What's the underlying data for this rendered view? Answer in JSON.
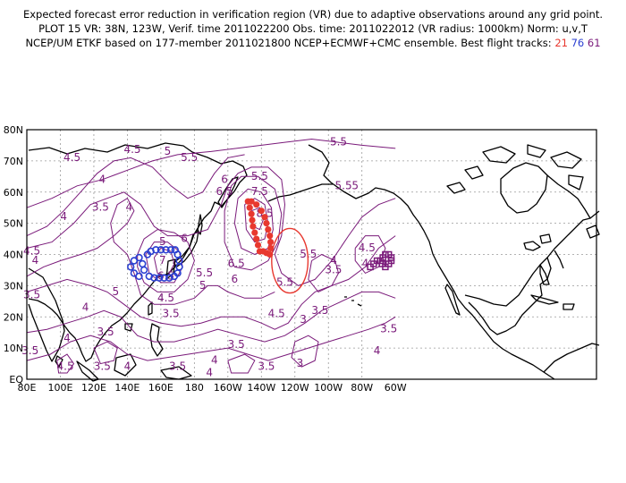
{
  "title": {
    "line1": "Expected forecast error reduction in verification region (VR) due to adaptive observations around any grid point.",
    "line2": "PLOT 15 VR: 38N, 123W, Verif. time 2011022200 Obs. time: 2011022012 (VR radius: 1000km) Norm: u,v,T",
    "line3_prefix": "NCEP/UM ETKF based on 177-member 2011021800 NCEP+ECMWF+CMC ensemble. Best flight tracks:",
    "tracks": [
      "21",
      "76",
      "61"
    ]
  },
  "axes": {
    "lat_labels": [
      "80N",
      "70N",
      "60N",
      "50N",
      "40N",
      "30N",
      "20N",
      "10N",
      "EQ"
    ],
    "lon_labels": [
      "80E",
      "100E",
      "120E",
      "140E",
      "160E",
      "180",
      "160W",
      "140W",
      "120W",
      "100W",
      "80W",
      "60W"
    ]
  },
  "colors": {
    "contour": "#7a1a7a",
    "track_21": "#e8382f",
    "track_76": "#2a3fd1",
    "track_61": "#7a1a7a",
    "vr_circle": "#e8382f"
  },
  "verification_region": {
    "lat": 38,
    "lon": -123,
    "radius_km": 1000
  },
  "contour_labels": [
    {
      "text": "4.5",
      "lat": 72.5,
      "lon": 143
    },
    {
      "text": "4.5",
      "lat": 70,
      "lon": 107
    },
    {
      "text": "4",
      "lat": 63,
      "lon": 125
    },
    {
      "text": "5",
      "lat": 72,
      "lon": 164
    },
    {
      "text": "5.5",
      "lat": 70,
      "lon": 177
    },
    {
      "text": "6",
      "lat": 63,
      "lon": -162
    },
    {
      "text": "6.5",
      "lat": 59,
      "lon": -162
    },
    {
      "text": "5.5",
      "lat": 64,
      "lon": -141
    },
    {
      "text": "7.5",
      "lat": 59,
      "lon": -141
    },
    {
      "text": "8.5",
      "lat": 52,
      "lon": -138
    },
    {
      "text": "5.5",
      "lat": 75,
      "lon": -94
    },
    {
      "text": "5.5",
      "lat": 61,
      "lon": -91
    },
    {
      "text": "5",
      "lat": 61,
      "lon": -84
    },
    {
      "text": "4",
      "lat": 51,
      "lon": 102
    },
    {
      "text": "3.5",
      "lat": 54,
      "lon": 124
    },
    {
      "text": "4",
      "lat": 54,
      "lon": 141
    },
    {
      "text": "4.5",
      "lat": 40,
      "lon": 83
    },
    {
      "text": "4",
      "lat": 37,
      "lon": 85
    },
    {
      "text": "5",
      "lat": 43,
      "lon": 161
    },
    {
      "text": "6",
      "lat": 44,
      "lon": 174
    },
    {
      "text": "7",
      "lat": 37,
      "lon": 161
    },
    {
      "text": "6.5",
      "lat": 32,
      "lon": 163
    },
    {
      "text": "4.5",
      "lat": 25,
      "lon": 163
    },
    {
      "text": "3.5",
      "lat": 20,
      "lon": 166
    },
    {
      "text": "5",
      "lat": 27,
      "lon": 133
    },
    {
      "text": "3.5",
      "lat": 26,
      "lon": 83
    },
    {
      "text": "4",
      "lat": 22,
      "lon": 115
    },
    {
      "text": "5.5",
      "lat": 33,
      "lon": -174
    },
    {
      "text": "5",
      "lat": 29,
      "lon": -175
    },
    {
      "text": "6.5",
      "lat": 36,
      "lon": -155
    },
    {
      "text": "6",
      "lat": 31,
      "lon": -156
    },
    {
      "text": "5.5",
      "lat": 30,
      "lon": -126
    },
    {
      "text": "4.5",
      "lat": 20,
      "lon": -131
    },
    {
      "text": "5.5",
      "lat": 39,
      "lon": -112
    },
    {
      "text": "4",
      "lat": 37,
      "lon": -97
    },
    {
      "text": "3.5",
      "lat": 34,
      "lon": -97
    },
    {
      "text": "3.5",
      "lat": 21,
      "lon": -105
    },
    {
      "text": "3",
      "lat": 18,
      "lon": -115
    },
    {
      "text": "3.5",
      "lat": 10,
      "lon": -155
    },
    {
      "text": "4.5",
      "lat": 41,
      "lon": -77
    },
    {
      "text": "4",
      "lat": 36,
      "lon": -78
    },
    {
      "text": "3.5",
      "lat": 15,
      "lon": -64
    },
    {
      "text": "4",
      "lat": 8,
      "lon": -71
    },
    {
      "text": "3.5",
      "lat": 14,
      "lon": 127
    },
    {
      "text": "4",
      "lat": 12,
      "lon": 104
    },
    {
      "text": "3.5",
      "lat": 8,
      "lon": 82
    },
    {
      "text": "4.5",
      "lat": 3,
      "lon": 103
    },
    {
      "text": "4",
      "lat": 3,
      "lon": 140
    },
    {
      "text": "3.5",
      "lat": 3,
      "lon": 125
    },
    {
      "text": "3.5",
      "lat": 3,
      "lon": 170
    },
    {
      "text": "4",
      "lat": 5,
      "lon": -168
    },
    {
      "text": "4",
      "lat": 1,
      "lon": -171
    },
    {
      "text": "3.5",
      "lat": 3,
      "lon": -137
    },
    {
      "text": "3",
      "lat": 4,
      "lon": -117
    }
  ],
  "tracks": {
    "track_21": [
      {
        "lat": 57,
        "lon": -148
      },
      {
        "lat": 55,
        "lon": -147
      },
      {
        "lat": 53,
        "lon": -146
      },
      {
        "lat": 51,
        "lon": -145.5
      },
      {
        "lat": 49,
        "lon": -145
      },
      {
        "lat": 47,
        "lon": -144
      },
      {
        "lat": 45,
        "lon": -143
      },
      {
        "lat": 43,
        "lon": -142
      },
      {
        "lat": 41,
        "lon": -141
      },
      {
        "lat": 41,
        "lon": -139
      },
      {
        "lat": 40.5,
        "lon": -137
      },
      {
        "lat": 40,
        "lon": -135
      },
      {
        "lat": 42,
        "lon": -134.5
      },
      {
        "lat": 44,
        "lon": -134.5
      },
      {
        "lat": 46,
        "lon": -135
      },
      {
        "lat": 48,
        "lon": -136
      },
      {
        "lat": 50,
        "lon": -137
      },
      {
        "lat": 52,
        "lon": -138
      },
      {
        "lat": 54,
        "lon": -140
      },
      {
        "lat": 56,
        "lon": -143
      },
      {
        "lat": 57,
        "lon": -146
      }
    ],
    "track_76": [
      {
        "lat": 41,
        "lon": 154
      },
      {
        "lat": 41.5,
        "lon": 157
      },
      {
        "lat": 41.5,
        "lon": 160
      },
      {
        "lat": 41.5,
        "lon": 163
      },
      {
        "lat": 41.5,
        "lon": 166
      },
      {
        "lat": 41.5,
        "lon": 168.5
      },
      {
        "lat": 40,
        "lon": 170
      },
      {
        "lat": 38,
        "lon": 171
      },
      {
        "lat": 36,
        "lon": 171
      },
      {
        "lat": 34,
        "lon": 170
      },
      {
        "lat": 33,
        "lon": 168
      },
      {
        "lat": 32.5,
        "lon": 165
      },
      {
        "lat": 32.5,
        "lon": 162
      },
      {
        "lat": 32.5,
        "lon": 159
      },
      {
        "lat": 32.5,
        "lon": 156
      },
      {
        "lat": 33,
        "lon": 153
      },
      {
        "lat": 35,
        "lon": 150
      },
      {
        "lat": 37,
        "lon": 149
      },
      {
        "lat": 39,
        "lon": 147
      },
      {
        "lat": 38,
        "lon": 144
      },
      {
        "lat": 36,
        "lon": 142
      },
      {
        "lat": 34,
        "lon": 144
      },
      {
        "lat": 33,
        "lon": 147
      },
      {
        "lat": 40,
        "lon": 152
      }
    ],
    "track_61": [
      {
        "lat": 36,
        "lon": -75
      },
      {
        "lat": 37,
        "lon": -73
      },
      {
        "lat": 38,
        "lon": -71
      },
      {
        "lat": 38,
        "lon": -69
      },
      {
        "lat": 39,
        "lon": -67.5
      },
      {
        "lat": 40,
        "lon": -66
      },
      {
        "lat": 40,
        "lon": -64
      },
      {
        "lat": 39,
        "lon": -62.5
      },
      {
        "lat": 38,
        "lon": -62.5
      },
      {
        "lat": 37,
        "lon": -64
      },
      {
        "lat": 36,
        "lon": -66
      },
      {
        "lat": 37,
        "lon": -68
      }
    ]
  }
}
